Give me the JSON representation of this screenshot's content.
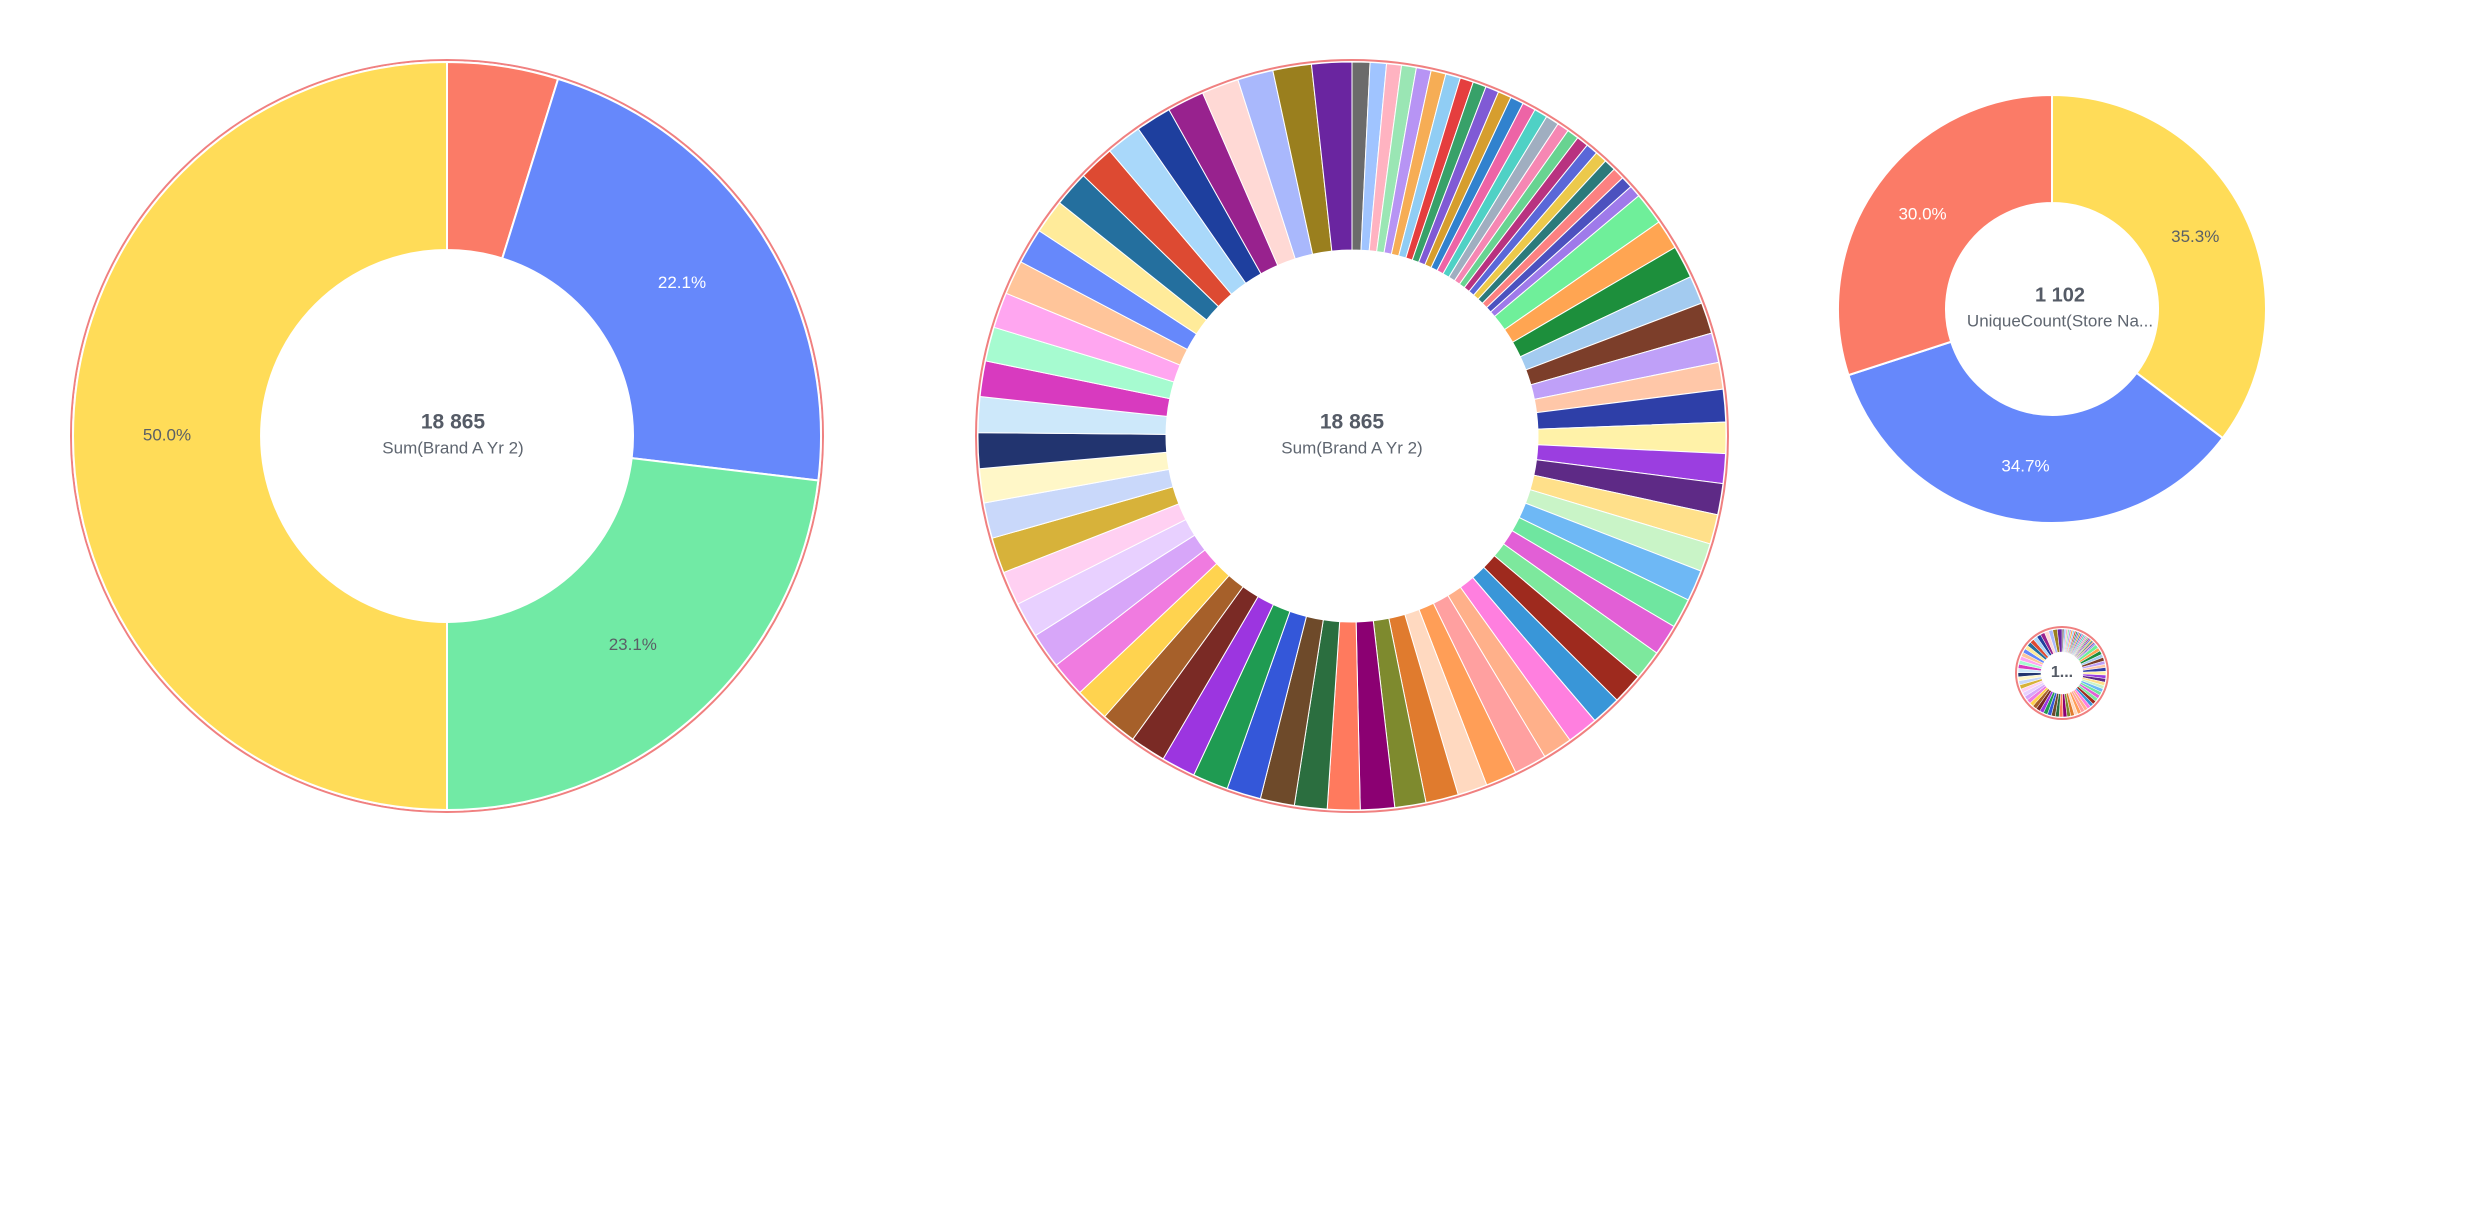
{
  "chart_data": [
    {
      "type": "donut",
      "center_value": "18 865",
      "center_label": "Sum(Brand A Yr 2)",
      "slices": [
        {
          "value": 4.8,
          "label": "",
          "color": "#FB7B67"
        },
        {
          "value": 22.1,
          "label": "22.1%",
          "color": "#6688FB"
        },
        {
          "value": 23.1,
          "label": "23.1%",
          "color": "#71EAA5"
        },
        {
          "value": 50.0,
          "label": "50.0%",
          "color": "#FFDC58"
        }
      ],
      "outline_color": "#F08080"
    },
    {
      "type": "donut",
      "center_value": "18 865",
      "center_label": "Sum(Brand A Yr 2)",
      "outline_color": "#F08080",
      "slices_detail": [
        {
          "value": 1.2,
          "color": "#6B6B6B"
        },
        {
          "value": 1.1,
          "color": "#A0C4FF"
        },
        {
          "value": 1.0,
          "color": "#FFB3C1"
        },
        {
          "value": 1.0,
          "color": "#9AE6B4"
        },
        {
          "value": 1.0,
          "color": "#B794F4"
        },
        {
          "value": 1.0,
          "color": "#F6AD55"
        },
        {
          "value": 1.0,
          "color": "#90CDF4"
        },
        {
          "value": 0.9,
          "color": "#E53E3E"
        },
        {
          "value": 0.9,
          "color": "#38A169"
        },
        {
          "value": 0.9,
          "color": "#805AD5"
        },
        {
          "value": 0.9,
          "color": "#D69E2E"
        },
        {
          "value": 0.9,
          "color": "#3182CE"
        },
        {
          "value": 0.9,
          "color": "#ED64A6"
        },
        {
          "value": 0.9,
          "color": "#4FD1C5"
        },
        {
          "value": 0.9,
          "color": "#A0AEC0"
        },
        {
          "value": 0.8,
          "color": "#F687B3"
        },
        {
          "value": 0.8,
          "color": "#68D391"
        },
        {
          "value": 0.8,
          "color": "#B83280"
        },
        {
          "value": 0.8,
          "color": "#5A67D8"
        },
        {
          "value": 0.8,
          "color": "#ECC94B"
        },
        {
          "value": 0.8,
          "color": "#2C7A7B"
        },
        {
          "value": 0.8,
          "color": "#FC8181"
        },
        {
          "value": 0.8,
          "color": "#4C51BF"
        },
        {
          "value": 0.8,
          "color": "#9F7AEA"
        }
      ],
      "slices": [
        {
          "value": 2.2,
          "color": "#6FEF9A"
        },
        {
          "value": 2.0,
          "color": "#FFA552"
        },
        {
          "value": 2.2,
          "color": "#1D8F3C"
        },
        {
          "value": 1.9,
          "color": "#A3CBF0"
        },
        {
          "value": 2.1,
          "color": "#7C3E2A"
        },
        {
          "value": 2.0,
          "color": "#BFA0F8"
        },
        {
          "value": 1.8,
          "color": "#FFC7A8"
        },
        {
          "value": 2.2,
          "color": "#2E3FA8"
        },
        {
          "value": 2.1,
          "color": "#FFF2A8"
        },
        {
          "value": 2.0,
          "color": "#9B3EE0"
        },
        {
          "value": 2.1,
          "color": "#5E2A86"
        },
        {
          "value": 2.0,
          "color": "#FFE08A"
        },
        {
          "value": 1.9,
          "color": "#C9F4C7"
        },
        {
          "value": 2.1,
          "color": "#6EB8F5"
        },
        {
          "value": 2.0,
          "color": "#6FE6A0"
        },
        {
          "value": 2.1,
          "color": "#E25FD6"
        },
        {
          "value": 2.0,
          "color": "#7DE89D"
        },
        {
          "value": 2.1,
          "color": "#9E2A1E"
        },
        {
          "value": 2.0,
          "color": "#3996D8"
        },
        {
          "value": 2.1,
          "color": "#FF7FDF"
        },
        {
          "value": 2.0,
          "color": "#FFB08A"
        },
        {
          "value": 2.2,
          "color": "#FFA0A0"
        },
        {
          "value": 2.1,
          "color": "#FF9E57"
        },
        {
          "value": 2.0,
          "color": "#FFD9C0"
        },
        {
          "value": 2.2,
          "color": "#E07B2E"
        },
        {
          "value": 2.1,
          "color": "#7E8A2E"
        },
        {
          "value": 2.3,
          "color": "#8B0072"
        },
        {
          "value": 2.2,
          "color": "#FF7A5E"
        },
        {
          "value": 2.2,
          "color": "#2B6E3F"
        },
        {
          "value": 2.3,
          "color": "#6E4A2A"
        },
        {
          "value": 2.3,
          "color": "#3457D9"
        },
        {
          "value": 2.4,
          "color": "#1F9B52"
        },
        {
          "value": 2.3,
          "color": "#9C35E0"
        },
        {
          "value": 2.4,
          "color": "#7A2A25"
        },
        {
          "value": 2.4,
          "color": "#A6602A"
        },
        {
          "value": 2.3,
          "color": "#FFD34F"
        },
        {
          "value": 2.4,
          "color": "#F07BE0"
        },
        {
          "value": 2.4,
          "color": "#D7A6F9"
        },
        {
          "value": 2.4,
          "color": "#E8D0FF"
        },
        {
          "value": 2.3,
          "color": "#FFD0F2"
        },
        {
          "value": 2.4,
          "color": "#D7B23A"
        },
        {
          "value": 2.4,
          "color": "#C9D8FA"
        },
        {
          "value": 2.3,
          "color": "#FFF7C8"
        },
        {
          "value": 2.4,
          "color": "#22346F"
        },
        {
          "value": 2.4,
          "color": "#CDE8FA"
        },
        {
          "value": 2.4,
          "color": "#D83ABF"
        },
        {
          "value": 2.3,
          "color": "#A6FBD0"
        },
        {
          "value": 2.4,
          "color": "#FFA6F0"
        },
        {
          "value": 2.3,
          "color": "#FFC59A"
        },
        {
          "value": 2.4,
          "color": "#6688FB"
        },
        {
          "value": 2.3,
          "color": "#FFEB9A"
        },
        {
          "value": 2.4,
          "color": "#246F9E"
        },
        {
          "value": 2.4,
          "color": "#DD4A32"
        },
        {
          "value": 2.4,
          "color": "#A9D8FA"
        },
        {
          "value": 2.4,
          "color": "#1E3F9E"
        },
        {
          "value": 2.5,
          "color": "#98228E"
        },
        {
          "value": 2.5,
          "color": "#FFD9D5"
        },
        {
          "value": 2.4,
          "color": "#A9B8FC"
        },
        {
          "value": 2.6,
          "color": "#9A7F1E"
        },
        {
          "value": 2.7,
          "color": "#6A25A0"
        }
      ]
    },
    {
      "type": "donut",
      "center_value": "1 102",
      "center_label": "UniqueCount(Store Na...",
      "slices": [
        {
          "value": 35.3,
          "label": "35.3%",
          "color": "#FFDC58"
        },
        {
          "value": 34.7,
          "label": "34.7%",
          "color": "#6688FB"
        },
        {
          "value": 30.0,
          "label": "30.0%",
          "color": "#FB7B67"
        }
      ]
    },
    {
      "type": "donut",
      "center_value": "1...",
      "center_label": "",
      "outline_color": "#F08080"
    }
  ]
}
